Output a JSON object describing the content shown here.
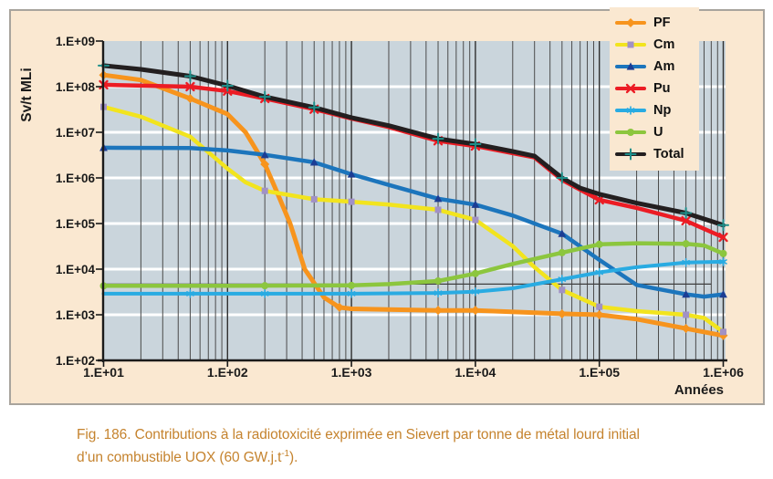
{
  "figure": {
    "panel_bg": "#FAE8D1",
    "border_color": "#A8A49D",
    "caption": {
      "fig_line1": "Fig. 186. Contributions à la radiotoxicité exprimée en Sievert par tonne de métal lourd initial",
      "line2_pre": "d’un combustible UOX (60 GW.j.t",
      "line2_sup": "-1",
      "line2_post": ").",
      "color": "#C5832E"
    }
  },
  "chart_data": {
    "type": "line",
    "title": "",
    "x_axis": {
      "title": "Années",
      "scale": "log",
      "min": 10,
      "max": 1000000,
      "ticks": [
        {
          "label": "1.E+01",
          "value": 10
        },
        {
          "label": "1.E+02",
          "value": 100
        },
        {
          "label": "1.E+03",
          "value": 1000
        },
        {
          "label": "1.E+04",
          "value": 10000
        },
        {
          "label": "1.E+05",
          "value": 100000
        },
        {
          "label": "1.E+06",
          "value": 1000000
        }
      ]
    },
    "y_axis": {
      "title": "Sv/t MLi",
      "scale": "log",
      "min": 100,
      "max": 1000000000,
      "ticks": [
        {
          "label": "1.E+02",
          "value": 100
        },
        {
          "label": "1.E+03",
          "value": 1000
        },
        {
          "label": "1.E+04",
          "value": 10000
        },
        {
          "label": "1.E+05",
          "value": 100000
        },
        {
          "label": "1.E+06",
          "value": 1000000
        },
        {
          "label": "1.E+07",
          "value": 10000000
        },
        {
          "label": "1.E+08",
          "value": 100000000
        },
        {
          "label": "1.E+09",
          "value": 1000000000
        }
      ]
    },
    "plot_bg": "#CAD5DC",
    "grid_major_h_color": "#FFFFFF",
    "grid_minor_v_color": "#4B4B4B",
    "grid_major_v_color": "#303030",
    "axis_color": "#1A1A1A",
    "tick_label_color": "#1A1A1A",
    "legend_position": "top-right",
    "reference_line": {
      "value": 4700,
      "t_start": 10,
      "t_end": 800000,
      "color": "#3F3F3F"
    },
    "series": [
      {
        "name": "PF",
        "color": "#F7941D",
        "marker": "diamond",
        "marker_color": "#F7941D",
        "width": 5,
        "points": [
          [
            10,
            180000000.0
          ],
          [
            20,
            140000000.0
          ],
          [
            50,
            55000000.0
          ],
          [
            100,
            25000000.0
          ],
          [
            140,
            10000000.0
          ],
          [
            200,
            2000000.0
          ],
          [
            250,
            500000.0
          ],
          [
            320,
            100000.0
          ],
          [
            420,
            10000.0
          ],
          [
            600,
            2400.0
          ],
          [
            800,
            1450.0
          ],
          [
            1000,
            1350.0
          ],
          [
            5000,
            1250.0
          ],
          [
            10000,
            1250.0
          ],
          [
            50000,
            1050.0
          ],
          [
            100000,
            1000.0
          ],
          [
            200000,
            800.0
          ],
          [
            500000,
            500.0
          ],
          [
            1000000,
            350.0
          ]
        ],
        "marker_t": [
          10,
          50,
          200,
          800,
          5000,
          10000,
          50000,
          100000,
          500000,
          1000000
        ]
      },
      {
        "name": "Cm",
        "color": "#F2E41E",
        "marker": "square",
        "marker_color": "#A191C6",
        "width": 4.5,
        "points": [
          [
            10,
            36000000.0
          ],
          [
            20,
            22000000.0
          ],
          [
            50,
            8000000.0
          ],
          [
            100,
            1600000.0
          ],
          [
            140,
            800000.0
          ],
          [
            200,
            520000.0
          ],
          [
            500,
            340000.0
          ],
          [
            1000,
            300000.0
          ],
          [
            2000,
            260000.0
          ],
          [
            5000,
            200000.0
          ],
          [
            10000,
            120000.0
          ],
          [
            20000,
            32000.0
          ],
          [
            30000,
            11000.0
          ],
          [
            50000,
            3500.0
          ],
          [
            100000,
            1500.0
          ],
          [
            200000,
            1200.0
          ],
          [
            500000,
            1000.0
          ],
          [
            700000,
            850.0
          ],
          [
            1000000,
            420.0
          ]
        ],
        "marker_t": [
          10,
          200,
          500,
          1000,
          5000,
          10000,
          50000,
          100000,
          500000,
          1000000
        ]
      },
      {
        "name": "Am",
        "color": "#1C75BC",
        "marker": "triangle",
        "marker_color": "#1C3D94",
        "width": 4.5,
        "points": [
          [
            10,
            4600000.0
          ],
          [
            50,
            4500000.0
          ],
          [
            100,
            4000000.0
          ],
          [
            200,
            3200000.0
          ],
          [
            500,
            2200000.0
          ],
          [
            1000,
            1200000.0
          ],
          [
            2000,
            700000.0
          ],
          [
            5000,
            350000.0
          ],
          [
            10000,
            260000.0
          ],
          [
            20000,
            150000.0
          ],
          [
            50000,
            60000.0
          ],
          [
            100000,
            16000.0
          ],
          [
            200000,
            4500.0
          ],
          [
            500000,
            2800.0
          ],
          [
            700000,
            2500.0
          ],
          [
            1000000,
            2800.0
          ]
        ],
        "marker_t": [
          10,
          200,
          500,
          1000,
          5000,
          10000,
          50000,
          500000,
          1000000
        ]
      },
      {
        "name": "Pu",
        "color": "#EC1C24",
        "marker": "x",
        "marker_color": "#EC1C24",
        "width": 4.5,
        "points": [
          [
            10,
            110000000.0
          ],
          [
            50,
            100000000.0
          ],
          [
            100,
            80000000.0
          ],
          [
            200,
            55000000.0
          ],
          [
            500,
            32000000.0
          ],
          [
            1000,
            20000000.0
          ],
          [
            2000,
            13000000.0
          ],
          [
            5000,
            6500000.0
          ],
          [
            10000,
            5000000.0
          ],
          [
            30000,
            2800000.0
          ],
          [
            50000,
            900000.0
          ],
          [
            100000,
            330000.0
          ],
          [
            200000,
            220000.0
          ],
          [
            500000,
            115000.0
          ],
          [
            1000000,
            50000.0
          ]
        ],
        "marker_t": [
          10,
          50,
          100,
          200,
          500,
          5000,
          10000,
          100000,
          500000,
          1000000
        ]
      },
      {
        "name": "Np",
        "color": "#29ABE2",
        "marker": "star",
        "marker_color": "#29ABE2",
        "width": 4,
        "points": [
          [
            10,
            2900.0
          ],
          [
            100,
            2900.0
          ],
          [
            1000,
            2900.0
          ],
          [
            5000,
            3000.0
          ],
          [
            10000,
            3200.0
          ],
          [
            20000,
            3800.0
          ],
          [
            50000,
            6000.0
          ],
          [
            100000,
            8500.0
          ],
          [
            200000,
            11000.0
          ],
          [
            500000,
            14000.0
          ],
          [
            1000000,
            14500.0
          ]
        ],
        "marker_t": [
          50,
          200,
          1000,
          5000,
          10000,
          50000,
          100000,
          500000,
          1000000
        ]
      },
      {
        "name": "U",
        "color": "#8CC63E",
        "marker": "circle",
        "marker_color": "#8CC63E",
        "width": 4.5,
        "points": [
          [
            10,
            4300.0
          ],
          [
            100,
            4300.0
          ],
          [
            1000,
            4400.0
          ],
          [
            2000,
            4700.0
          ],
          [
            5000,
            5500.0
          ],
          [
            10000,
            8000.0
          ],
          [
            20000,
            13000.0
          ],
          [
            50000,
            23000.0
          ],
          [
            100000,
            35000.0
          ],
          [
            200000,
            37000.0
          ],
          [
            500000,
            36000.0
          ],
          [
            700000,
            33000.0
          ],
          [
            1000000,
            22000.0
          ]
        ],
        "marker_t": [
          10,
          200,
          1000,
          5000,
          10000,
          50000,
          100000,
          500000,
          1000000
        ]
      },
      {
        "name": "Total",
        "color": "#231F20",
        "marker": "plus",
        "marker_color": "#1E8F8A",
        "width": 5,
        "points": [
          [
            10,
            290000000.0
          ],
          [
            20,
            240000000.0
          ],
          [
            50,
            170000000.0
          ],
          [
            100,
            105000000.0
          ],
          [
            200,
            60000000.0
          ],
          [
            500,
            35000000.0
          ],
          [
            1000,
            21000000.0
          ],
          [
            2000,
            14000000.0
          ],
          [
            5000,
            7200000.0
          ],
          [
            10000,
            5500000.0
          ],
          [
            20000,
            3800000.0
          ],
          [
            30000,
            3000000.0
          ],
          [
            50000,
            1000000.0
          ],
          [
            70000,
            600000.0
          ],
          [
            100000,
            440000.0
          ],
          [
            200000,
            280000.0
          ],
          [
            500000,
            170000.0
          ],
          [
            1000000,
            92000.0
          ]
        ],
        "marker_t": [
          10,
          50,
          100,
          200,
          500,
          5000,
          10000,
          50000,
          500000,
          1000000
        ]
      }
    ]
  }
}
